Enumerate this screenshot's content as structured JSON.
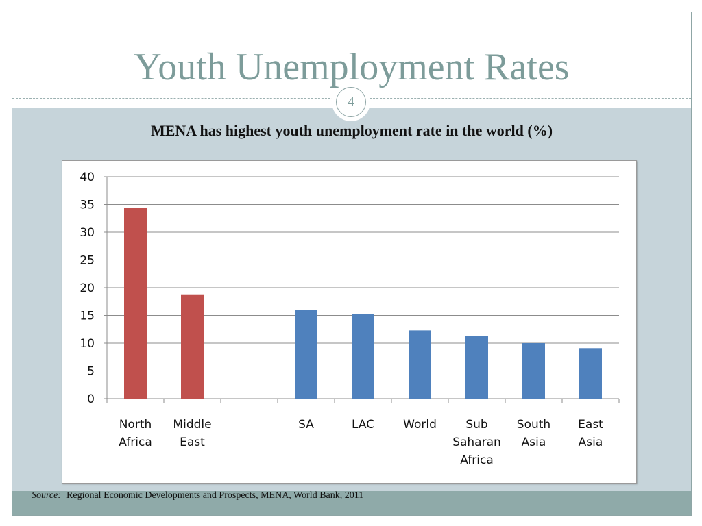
{
  "slide": {
    "title": "Youth Unemployment Rates",
    "page_number": "4",
    "source_label": "Source:",
    "source_text": "Regional Economic Developments and Prospects, MENA, World Bank, 2011"
  },
  "chart_data": {
    "type": "bar",
    "title": "MENA has highest youth unemployment rate in the world (%)",
    "categories": [
      [
        "North",
        "Africa"
      ],
      [
        "Middle",
        "East"
      ],
      [],
      [
        "SA"
      ],
      [
        "LAC"
      ],
      [
        "World"
      ],
      [
        "Sub",
        "Saharan",
        "Africa"
      ],
      [
        "South",
        "Asia"
      ],
      [
        "East",
        "Asia"
      ]
    ],
    "values": [
      34.4,
      18.8,
      null,
      16.0,
      15.2,
      12.3,
      11.3,
      10.0,
      9.1
    ],
    "bar_colors": [
      "#c0504d",
      "#c0504d",
      null,
      "#4f81bd",
      "#4f81bd",
      "#4f81bd",
      "#4f81bd",
      "#4f81bd",
      "#4f81bd"
    ],
    "ylim": [
      0,
      40
    ],
    "yticks": [
      0,
      5,
      10,
      15,
      20,
      25,
      30,
      35,
      40
    ],
    "grid": true,
    "xlabel": "",
    "ylabel": ""
  }
}
